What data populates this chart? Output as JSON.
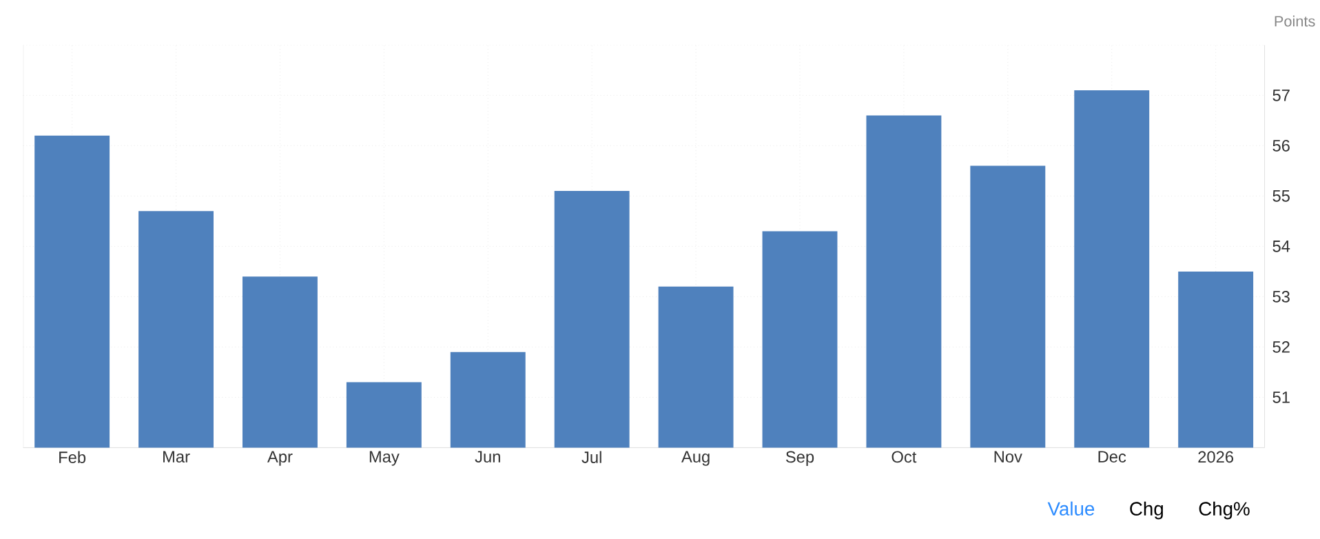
{
  "chart_data": {
    "type": "bar",
    "ylabel": "Points",
    "categories": [
      "Feb",
      "Mar",
      "Apr",
      "May",
      "Jun",
      "Jul",
      "Aug",
      "Sep",
      "Oct",
      "Nov",
      "Dec",
      "2026"
    ],
    "values": [
      56.2,
      54.7,
      53.4,
      51.3,
      51.9,
      55.1,
      53.2,
      54.3,
      56.6,
      55.6,
      57.1,
      53.5
    ],
    "color": "#4f81bd",
    "ylim": [
      50,
      58
    ],
    "yticks": [
      51,
      52,
      53,
      54,
      55,
      56,
      57
    ],
    "grid": true,
    "annotations": [
      "Value",
      "Chg",
      "Chg%"
    ]
  }
}
